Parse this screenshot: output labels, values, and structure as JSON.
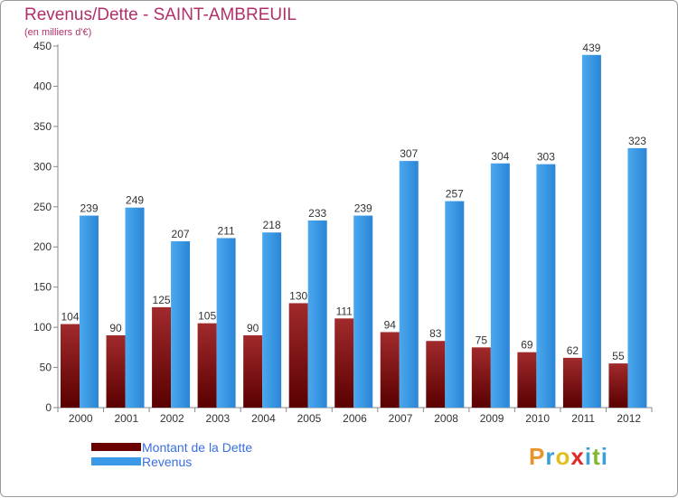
{
  "title": "Revenus/Dette - SAINT-AMBREUIL",
  "subtitle": "(en milliers d'€)",
  "colors": {
    "debt": "#7a0e10",
    "revenue": "#2f96e6",
    "title": "#b0306a",
    "legend_text": "#3a6fe0"
  },
  "legend": [
    {
      "label": "Montant de la Dette",
      "color": "#6b0000"
    },
    {
      "label": "Revenus",
      "color": "#3a9ae8"
    }
  ],
  "logo": {
    "text": "Proxiti",
    "letters": [
      "P",
      "r",
      "o",
      "x",
      "i",
      "t",
      "i"
    ],
    "letter_colors": [
      "#e8942a",
      "#3aa0d8",
      "#e0c020",
      "#e2262a",
      "#3aa0d8",
      "#80b830",
      "#3aa0d8"
    ]
  },
  "chart_data": {
    "type": "bar",
    "title": "Revenus/Dette - SAINT-AMBREUIL",
    "subtitle": "(en milliers d'€)",
    "categories": [
      "2000",
      "2001",
      "2002",
      "2003",
      "2004",
      "2005",
      "2006",
      "2007",
      "2008",
      "2009",
      "2010",
      "2011",
      "2012"
    ],
    "series": [
      {
        "name": "Montant de la Dette",
        "values": [
          104,
          90,
          125,
          105,
          90,
          130,
          111,
          94,
          83,
          75,
          69,
          62,
          55
        ]
      },
      {
        "name": "Revenus",
        "values": [
          239,
          249,
          207,
          211,
          218,
          233,
          239,
          307,
          257,
          304,
          303,
          439,
          323
        ]
      }
    ],
    "ylim": [
      0,
      450
    ],
    "yticks": [
      0,
      50,
      100,
      150,
      200,
      250,
      300,
      350,
      400,
      450
    ],
    "grid": false,
    "legend_position": "bottom-left"
  }
}
